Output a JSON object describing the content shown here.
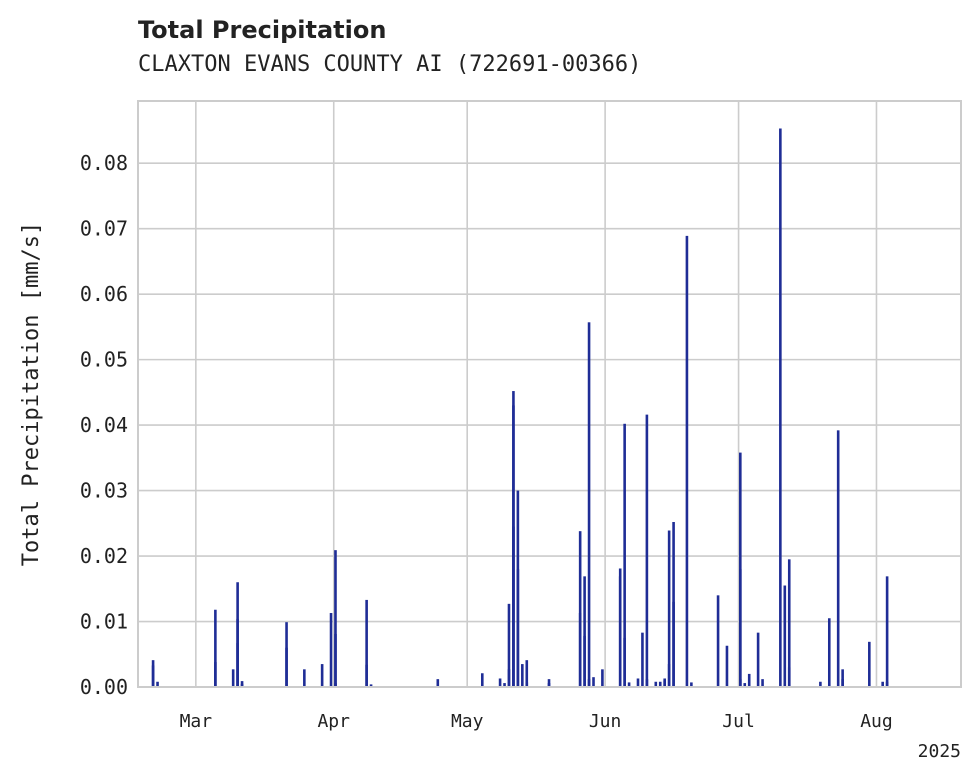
{
  "chart_data": {
    "type": "bar",
    "title": "Total Precipitation",
    "subtitle": "CLAXTON EVANS COUNTY AI (722691-00366)",
    "xlabel": "",
    "ylabel": "Total Precipitation [mm/s]",
    "ylim": [
      0,
      0.0895
    ],
    "yticks": [
      "0.00",
      "0.01",
      "0.02",
      "0.03",
      "0.04",
      "0.05",
      "0.06",
      "0.07",
      "0.08"
    ],
    "xlim": [
      "2025-02-16",
      "2025-08-20"
    ],
    "xticks": [
      {
        "date": "2025-03-01",
        "label": "Mar"
      },
      {
        "date": "2025-04-01",
        "label": "Apr"
      },
      {
        "date": "2025-05-01",
        "label": "May"
      },
      {
        "date": "2025-06-01",
        "label": "Jun"
      },
      {
        "date": "2025-07-01",
        "label": "Jul"
      },
      {
        "date": "2025-08-01",
        "label": "Aug"
      }
    ],
    "year_label": "2025",
    "grid": true,
    "bar_color": "#1f2d96",
    "bars": [
      [
        "2025-02-19",
        0.0033
      ],
      [
        "2025-02-19",
        0.0041
      ],
      [
        "2025-02-20",
        0.0008
      ],
      [
        "2025-03-05",
        0.0118
      ],
      [
        "2025-03-05",
        0.0038
      ],
      [
        "2025-03-09",
        0.0027
      ],
      [
        "2025-03-10",
        0.0067
      ],
      [
        "2025-03-10",
        0.0104
      ],
      [
        "2025-03-10",
        0.016
      ],
      [
        "2025-03-11",
        0.0005
      ],
      [
        "2025-03-11",
        0.0009
      ],
      [
        "2025-03-21",
        0.0099
      ],
      [
        "2025-03-21",
        0.006
      ],
      [
        "2025-03-25",
        0.0027
      ],
      [
        "2025-03-29",
        0.0035
      ],
      [
        "2025-03-31",
        0.0113
      ],
      [
        "2025-04-01",
        0.0081
      ],
      [
        "2025-04-01",
        0.0209
      ],
      [
        "2025-04-01",
        0.0006
      ],
      [
        "2025-04-08",
        0.0034
      ],
      [
        "2025-04-08",
        0.0133
      ],
      [
        "2025-04-09",
        0.0004
      ],
      [
        "2025-04-24",
        0.0012
      ],
      [
        "2025-05-04",
        0.0021
      ],
      [
        "2025-05-08",
        0.0013
      ],
      [
        "2025-05-09",
        0.0006
      ],
      [
        "2025-05-10",
        0.0027
      ],
      [
        "2025-05-10",
        0.0127
      ],
      [
        "2025-05-11",
        0.0245
      ],
      [
        "2025-05-11",
        0.0452
      ],
      [
        "2025-05-11",
        0.043
      ],
      [
        "2025-05-12",
        0.03
      ],
      [
        "2025-05-12",
        0.018
      ],
      [
        "2025-05-13",
        0.0035
      ],
      [
        "2025-05-14",
        0.0007
      ],
      [
        "2025-05-14",
        0.0041
      ],
      [
        "2025-05-19",
        0.0012
      ],
      [
        "2025-05-19",
        0.0006
      ],
      [
        "2025-05-26",
        0.0238
      ],
      [
        "2025-05-26",
        0.0113
      ],
      [
        "2025-05-27",
        0.0169
      ],
      [
        "2025-05-27",
        0.0078
      ],
      [
        "2025-05-28",
        0.0012
      ],
      [
        "2025-05-28",
        0.0557
      ],
      [
        "2025-05-29",
        0.0015
      ],
      [
        "2025-05-31",
        0.0027
      ],
      [
        "2025-06-04",
        0.0169
      ],
      [
        "2025-06-04",
        0.0181
      ],
      [
        "2025-06-05",
        0.0075
      ],
      [
        "2025-06-05",
        0.0402
      ],
      [
        "2025-06-06",
        0.0007
      ],
      [
        "2025-06-08",
        0.0013
      ],
      [
        "2025-06-09",
        0.0083
      ],
      [
        "2025-06-10",
        0.0012
      ],
      [
        "2025-06-10",
        0.0416
      ],
      [
        "2025-06-12",
        0.0008
      ],
      [
        "2025-06-13",
        0.0008
      ],
      [
        "2025-06-14",
        0.0013
      ],
      [
        "2025-06-14",
        0.001
      ],
      [
        "2025-06-15",
        0.0035
      ],
      [
        "2025-06-15",
        0.0239
      ],
      [
        "2025-06-16",
        0.0252
      ],
      [
        "2025-06-16",
        0.013
      ],
      [
        "2025-06-19",
        0.0689
      ],
      [
        "2025-06-20",
        0.0007
      ],
      [
        "2025-06-26",
        0.014
      ],
      [
        "2025-06-28",
        0.0063
      ],
      [
        "2025-07-01",
        0.0358
      ],
      [
        "2025-07-01",
        0.018
      ],
      [
        "2025-07-01",
        0.0012
      ],
      [
        "2025-07-02",
        0.0006
      ],
      [
        "2025-07-03",
        0.002
      ],
      [
        "2025-07-05",
        0.0083
      ],
      [
        "2025-07-06",
        0.0012
      ],
      [
        "2025-07-10",
        0.0853
      ],
      [
        "2025-07-11",
        0.0155
      ],
      [
        "2025-07-12",
        0.0195
      ],
      [
        "2025-07-12",
        0.003
      ],
      [
        "2025-07-19",
        0.0008
      ],
      [
        "2025-07-21",
        0.0105
      ],
      [
        "2025-07-23",
        0.0392
      ],
      [
        "2025-07-24",
        0.0027
      ],
      [
        "2025-07-24",
        0.0012
      ],
      [
        "2025-07-30",
        0.0069
      ],
      [
        "2025-08-02",
        0.0008
      ],
      [
        "2025-08-03",
        0.0169
      ],
      [
        "2025-08-03",
        0.0008
      ]
    ]
  }
}
